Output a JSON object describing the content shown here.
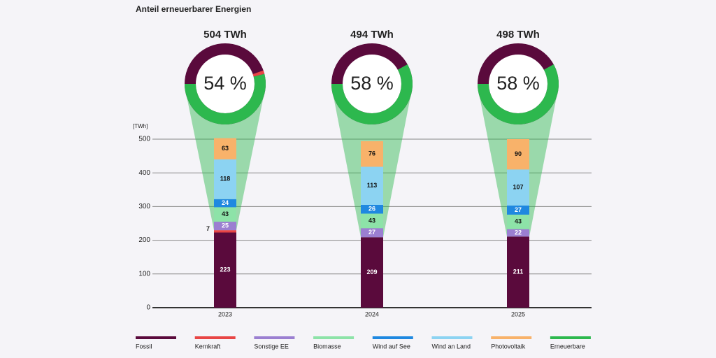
{
  "chart_data": {
    "type": "bar",
    "title": "Anteil erneuerbarer Energien",
    "y_label": "[TWh]",
    "categories": [
      "2023",
      "2024",
      "2025"
    ],
    "totals": [
      504,
      494,
      498
    ],
    "total_labels": [
      "504 TWh",
      "494 TWh",
      "498 TWh"
    ],
    "series": [
      {
        "name": "Fossil",
        "color": "#5a0a3c",
        "values": [
          223,
          209,
          211
        ]
      },
      {
        "name": "Kernkraft",
        "color": "#e84545",
        "values": [
          7,
          null,
          null
        ]
      },
      {
        "name": "Sonstige EE",
        "color": "#9b7fd1",
        "values": [
          25,
          27,
          22
        ]
      },
      {
        "name": "Biomasse",
        "color": "#8de3a8",
        "values": [
          43,
          43,
          43
        ]
      },
      {
        "name": "Wind auf See",
        "color": "#1f88e0",
        "values": [
          24,
          26,
          27
        ]
      },
      {
        "name": "Wind an Land",
        "color": "#8cd3f2",
        "values": [
          118,
          113,
          107
        ]
      },
      {
        "name": "Photovoltaik",
        "color": "#f8b26a",
        "values": [
          63,
          76,
          90
        ]
      }
    ],
    "renewable": {
      "name": "Erneuerbare",
      "color": "#2db84e",
      "shares": [
        54,
        58,
        58
      ],
      "share_labels": [
        "54 %",
        "58 %",
        "58 %"
      ]
    },
    "ylim": [
      0,
      500
    ],
    "yticks": [
      0,
      100,
      200,
      300,
      400,
      500
    ],
    "grid": true
  }
}
